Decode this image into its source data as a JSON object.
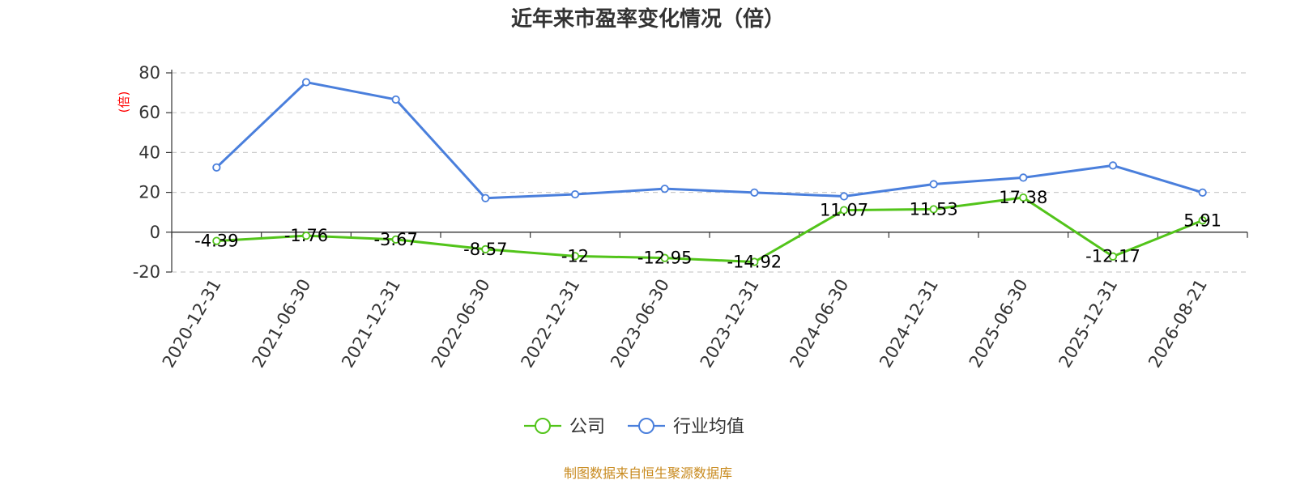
{
  "chart_data": {
    "type": "line",
    "title": "近年来市盈率变化情况（倍）",
    "y_unit": "(倍)",
    "ylim": [
      -20,
      80
    ],
    "y_ticks": [
      -20,
      0,
      20,
      40,
      60,
      80
    ],
    "grid": true,
    "legend_position": "bottom-center",
    "categories": [
      "2020-12-31",
      "2021-06-30",
      "2021-12-31",
      "2022-06-30",
      "2022-12-31",
      "2023-06-30",
      "2023-12-31",
      "2024-06-30",
      "2024-12-31",
      "2025-06-30",
      "2025-12-31",
      "2026-08-21"
    ],
    "series": [
      {
        "name": "公司",
        "color": "#52c41a",
        "values": [
          -4.39,
          -1.76,
          -3.67,
          -8.57,
          -12,
          -12.95,
          -14.92,
          11.07,
          11.53,
          17.38,
          -12.17,
          5.91
        ],
        "labels": [
          "-4.39",
          "-1.76",
          "-3.67",
          "-8.57",
          "-12",
          "-12.95",
          "-14.92",
          "11.07",
          "11.53",
          "17.38",
          "-12.17",
          "5.91"
        ]
      },
      {
        "name": "行业均值",
        "color": "#4a7fdc",
        "values": [
          32.5,
          75.3,
          66.6,
          17.1,
          19.0,
          21.8,
          19.9,
          18.0,
          24.1,
          27.4,
          33.5,
          19.9
        ]
      }
    ]
  },
  "source": "制图数据来自恒生聚源数据库"
}
